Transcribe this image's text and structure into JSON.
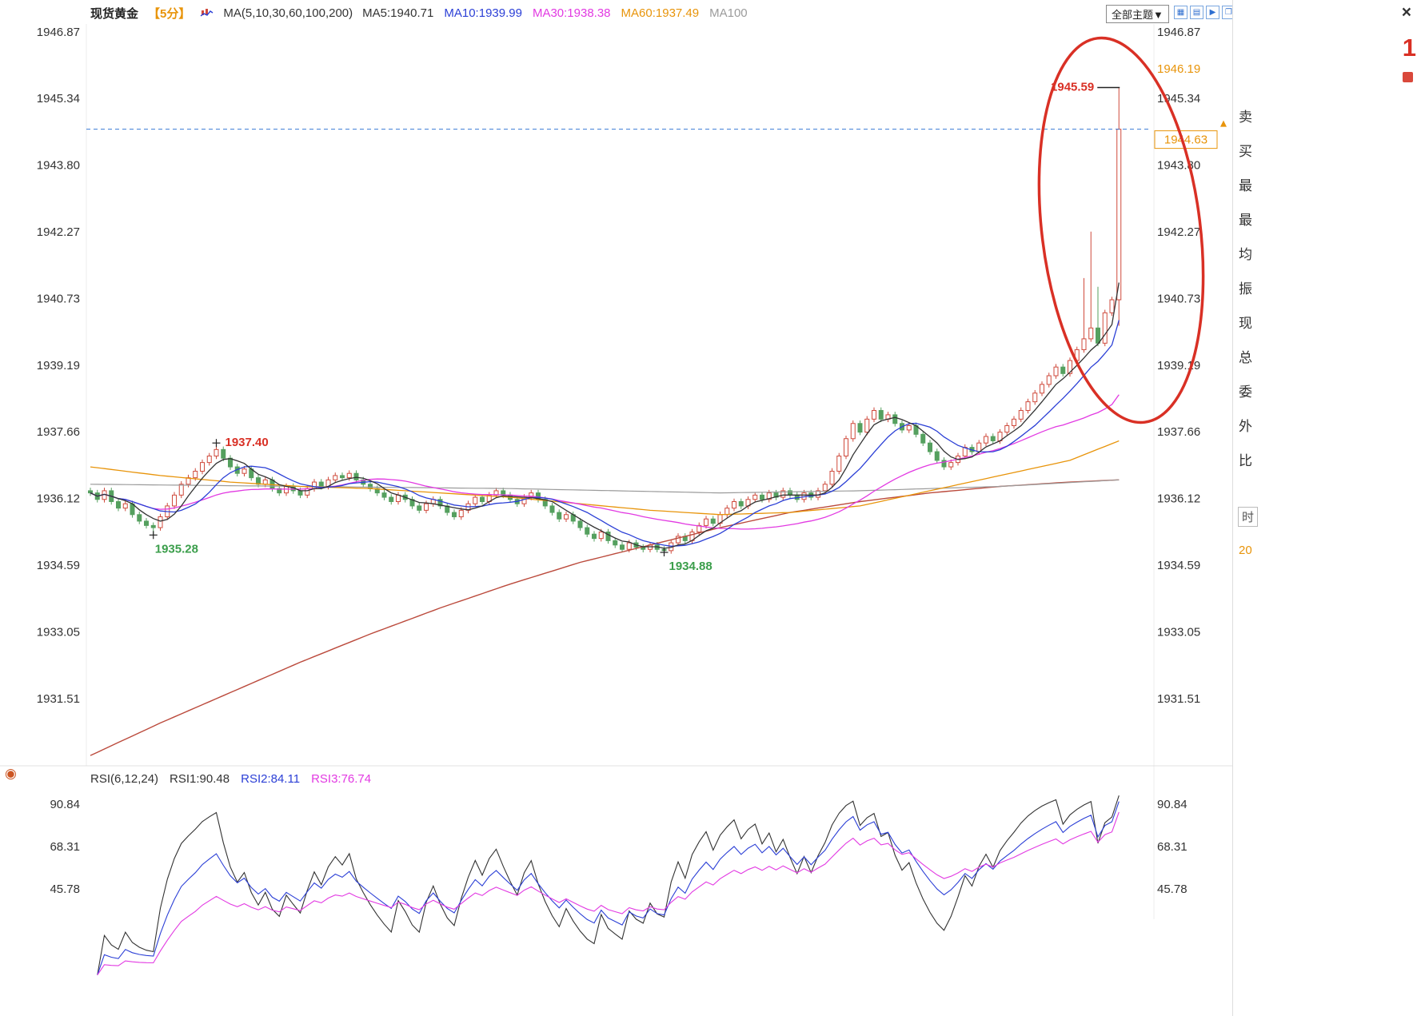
{
  "header": {
    "symbol": "现货黄金",
    "period": "【5分】",
    "ma_group": "MA(5,10,30,60,100,200)",
    "ma_items": [
      {
        "label": "MA5:1940.71",
        "color": "#333333"
      },
      {
        "label": "MA10:1939.99",
        "color": "#2b3fd6"
      },
      {
        "label": "MA30:1938.38",
        "color": "#e23ae2"
      },
      {
        "label": "MA60:1937.49",
        "color": "#e8940a"
      },
      {
        "label": "MA100",
        "color": "#9b9b9b"
      }
    ],
    "theme_button": "全部主题▼",
    "tools": [
      {
        "glyph": "▦",
        "name": "candle-grid-icon"
      },
      {
        "glyph": "▤",
        "name": "panel-layout-icon"
      },
      {
        "glyph": "▶",
        "name": "play-icon"
      },
      {
        "glyph": "❐",
        "name": "multi-window-icon"
      }
    ]
  },
  "icons": {
    "sun": "◉"
  },
  "rsi_legend": {
    "group": "RSI(6,12,24)",
    "items": [
      {
        "label": "RSI1:90.48",
        "color": "#333333"
      },
      {
        "label": "RSI2:84.11",
        "color": "#2b3fd6"
      },
      {
        "label": "RSI3:76.74",
        "color": "#e23ae2"
      }
    ]
  },
  "right_panel": {
    "close": "×",
    "partial_price": "1",
    "labels": [
      "卖",
      "买",
      "最",
      "最",
      "均",
      "振",
      "现",
      "总",
      "委",
      "外",
      "比"
    ],
    "time_tab": "时",
    "time_partial": "20"
  },
  "chart_data": {
    "type": "candlestick",
    "title": "现货黄金 5分",
    "legend_position": "top",
    "grid": false,
    "price_axis": [
      1946.87,
      1945.34,
      1943.8,
      1942.27,
      1940.73,
      1939.19,
      1937.66,
      1936.12,
      1934.59,
      1933.05,
      1931.51
    ],
    "rsi_axis": [
      90.84,
      68.31,
      45.78
    ],
    "first_open": 1936.3,
    "closes": [
      1936.25,
      1936.1,
      1936.3,
      1936.05,
      1935.9,
      1936.0,
      1935.75,
      1935.6,
      1935.5,
      1935.45,
      1935.7,
      1935.95,
      1936.2,
      1936.45,
      1936.6,
      1936.75,
      1936.95,
      1937.1,
      1937.25,
      1937.05,
      1936.85,
      1936.7,
      1936.8,
      1936.6,
      1936.45,
      1936.55,
      1936.35,
      1936.25,
      1936.4,
      1936.3,
      1936.2,
      1936.35,
      1936.5,
      1936.4,
      1936.55,
      1936.65,
      1936.6,
      1936.7,
      1936.55,
      1936.45,
      1936.35,
      1936.25,
      1936.15,
      1936.05,
      1936.2,
      1936.1,
      1935.95,
      1935.85,
      1936.0,
      1936.1,
      1935.95,
      1935.8,
      1935.7,
      1935.85,
      1936.0,
      1936.15,
      1936.05,
      1936.2,
      1936.3,
      1936.2,
      1936.1,
      1936.0,
      1936.15,
      1936.25,
      1936.1,
      1935.95,
      1935.8,
      1935.65,
      1935.75,
      1935.6,
      1935.45,
      1935.3,
      1935.2,
      1935.35,
      1935.15,
      1935.05,
      1934.95,
      1935.1,
      1935.0,
      1934.95,
      1935.05,
      1934.95,
      1934.92,
      1935.1,
      1935.25,
      1935.15,
      1935.35,
      1935.5,
      1935.65,
      1935.55,
      1935.75,
      1935.9,
      1936.05,
      1935.95,
      1936.1,
      1936.2,
      1936.1,
      1936.25,
      1936.15,
      1936.3,
      1936.2,
      1936.1,
      1936.25,
      1936.15,
      1936.3,
      1936.45,
      1936.75,
      1937.1,
      1937.5,
      1937.85,
      1937.65,
      1937.95,
      1938.15,
      1937.95,
      1938.05,
      1937.85,
      1937.7,
      1937.8,
      1937.6,
      1937.4,
      1937.2,
      1937.0,
      1936.85,
      1936.95,
      1937.1,
      1937.3,
      1937.2,
      1937.4,
      1937.55,
      1937.45,
      1937.65,
      1937.8,
      1937.95,
      1938.15,
      1938.35,
      1938.55,
      1938.75,
      1938.95,
      1939.15,
      1939.0,
      1939.3,
      1939.55,
      1939.8,
      1940.05,
      1939.7,
      1940.4,
      1940.7,
      1944.63
    ],
    "wick_overrides": {
      "9": {
        "low": 1935.28
      },
      "18": {
        "high": 1937.4
      },
      "82": {
        "low": 1934.88
      },
      "142": {
        "high": 1941.2
      },
      "143": {
        "high": 1942.27
      },
      "144": {
        "high": 1941.0
      },
      "147": {
        "high": 1945.59,
        "low": 1940.1
      }
    },
    "ma_periods": [
      5,
      10,
      30
    ],
    "ma60_anchors": [
      [
        0,
        1936.85
      ],
      [
        10,
        1936.65
      ],
      [
        20,
        1936.5
      ],
      [
        30,
        1936.4
      ],
      [
        40,
        1936.35
      ],
      [
        50,
        1936.25
      ],
      [
        60,
        1936.15
      ],
      [
        70,
        1936.0
      ],
      [
        80,
        1935.85
      ],
      [
        90,
        1935.75
      ],
      [
        100,
        1935.8
      ],
      [
        110,
        1935.95
      ],
      [
        120,
        1936.3
      ],
      [
        130,
        1936.65
      ],
      [
        140,
        1937.0
      ],
      [
        147,
        1937.45
      ]
    ],
    "ma100_anchors": [
      [
        0,
        1936.45
      ],
      [
        30,
        1936.4
      ],
      [
        60,
        1936.35
      ],
      [
        90,
        1936.25
      ],
      [
        110,
        1936.3
      ],
      [
        130,
        1936.4
      ],
      [
        147,
        1936.55
      ]
    ],
    "ma200_anchors": [
      [
        0,
        1930.2
      ],
      [
        10,
        1930.95
      ],
      [
        20,
        1931.65
      ],
      [
        30,
        1932.35
      ],
      [
        40,
        1933.0
      ],
      [
        50,
        1933.6
      ],
      [
        60,
        1934.15
      ],
      [
        70,
        1934.65
      ],
      [
        80,
        1935.05
      ],
      [
        90,
        1935.45
      ],
      [
        100,
        1935.8
      ],
      [
        110,
        1936.05
      ],
      [
        120,
        1936.25
      ],
      [
        130,
        1936.4
      ],
      [
        140,
        1936.5
      ],
      [
        147,
        1936.55
      ]
    ],
    "rsi_periods": [
      6,
      12,
      24
    ],
    "current_price": 1944.63,
    "session_high": 1946.19,
    "points": {
      "early_high": {
        "i": 18,
        "v": 1937.4
      },
      "early_low": {
        "i": 9,
        "v": 1935.28
      },
      "mid_low": {
        "i": 82,
        "v": 1934.88
      },
      "spike_high": {
        "i": 147,
        "v": 1945.59
      }
    },
    "annotation_labels": {
      "early_high": "1937.40",
      "early_low": "1935.28",
      "mid_low": "1934.88",
      "spike_high": "1945.59",
      "current_price": "1944.63",
      "session_high": "1946.19"
    },
    "colors": {
      "up": "#cf4a3c",
      "down": "#55a05f",
      "ma5": "#333333",
      "ma10": "#2b3fd6",
      "ma30": "#e23ae2",
      "ma60": "#e8940a",
      "ma100": "#9b9b9b",
      "ma200": "#bb4a3c",
      "dashed": "#3a7bd5",
      "annotation_red": "#d93025",
      "annotation_green": "#3b9e4b",
      "ellipse": "#d93025",
      "orange": "#e8940a",
      "axis_text": "#333333",
      "rsi_lines": [
        "#333333",
        "#2b3fd6",
        "#e23ae2"
      ]
    }
  }
}
